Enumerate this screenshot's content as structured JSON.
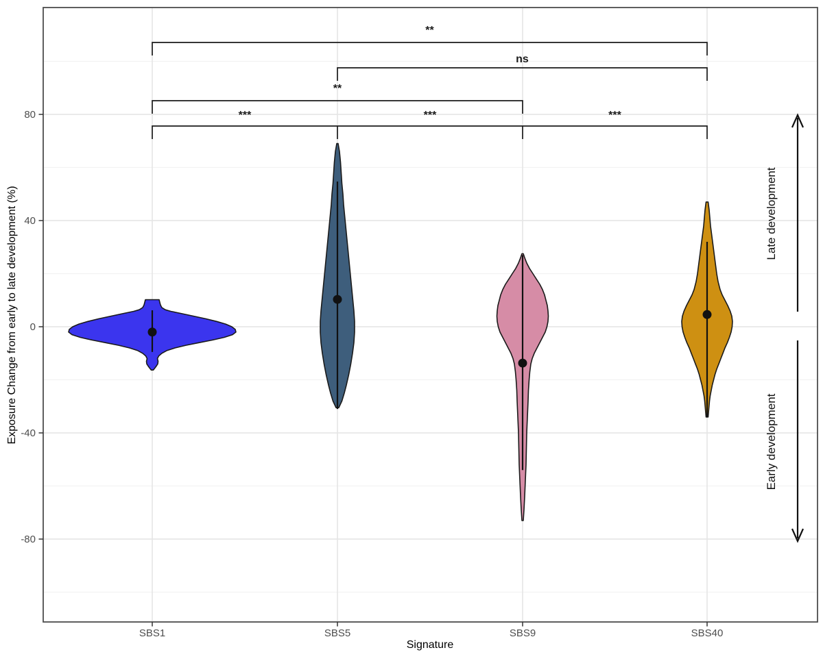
{
  "chart_data": {
    "type": "violin",
    "title": "",
    "xlabel": "Signature",
    "ylabel": "Exposure Change from early to late development (%)",
    "categories": [
      "SBS1",
      "SBS5",
      "SBS9",
      "SBS40"
    ],
    "y_ticks": [
      80,
      40,
      0,
      -40,
      -80
    ],
    "y_tick_labels": [
      "80",
      "40",
      "0",
      "-40",
      "-80"
    ],
    "y_minor_ticks": [
      100,
      60,
      20,
      -20,
      -60,
      -100
    ],
    "ylim": [
      -111,
      120
    ],
    "grid": "on",
    "legend": "none",
    "colors": {
      "SBS1": "#3b35ee",
      "SBS5": "#3e5e7c",
      "SBS9": "#d68ca6",
      "SBS40": "#ce9012",
      "outline": "#1a1a1a",
      "major_grid": "#e4e4e4",
      "minor_grid": "#f2f2f2",
      "panel_border": "#4d4d4d"
    },
    "series": [
      {
        "name": "SBS1",
        "color": "#3b35ee",
        "median": -2,
        "range_line": [
          6.2,
          -9.5
        ],
        "extent": [
          10.2,
          -16.3
        ],
        "profile": [
          [
            10.2,
            10
          ],
          [
            9.2,
            11
          ],
          [
            8.2,
            12
          ],
          [
            7.2,
            14
          ],
          [
            6.4,
            19
          ],
          [
            5.8,
            27
          ],
          [
            5,
            42
          ],
          [
            4,
            60
          ],
          [
            3,
            78
          ],
          [
            2,
            94
          ],
          [
            1,
            107
          ],
          [
            0,
            116
          ],
          [
            -1,
            121
          ],
          [
            -2,
            122
          ],
          [
            -3,
            117
          ],
          [
            -4,
            105
          ],
          [
            -5,
            88
          ],
          [
            -6,
            68
          ],
          [
            -7,
            49
          ],
          [
            -8,
            33
          ],
          [
            -9,
            21
          ],
          [
            -10,
            14
          ],
          [
            -11,
            9.5
          ],
          [
            -12,
            7.5
          ],
          [
            -13,
            8.5
          ],
          [
            -14,
            8
          ],
          [
            -15,
            5.5
          ],
          [
            -16.3,
            1.5
          ]
        ]
      },
      {
        "name": "SBS5",
        "color": "#3e5e7c",
        "median": 10.3,
        "range_line": [
          54.7,
          -31
        ],
        "extent": [
          69,
          -30.5
        ],
        "profile": [
          [
            69,
            1
          ],
          [
            66,
            3
          ],
          [
            62,
            4.5
          ],
          [
            58,
            5.5
          ],
          [
            54,
            6.5
          ],
          [
            50,
            8
          ],
          [
            46,
            9
          ],
          [
            42,
            10.5
          ],
          [
            38,
            12
          ],
          [
            34,
            13.5
          ],
          [
            30,
            15
          ],
          [
            26,
            16.5
          ],
          [
            22,
            18
          ],
          [
            18,
            19.5
          ],
          [
            14,
            21
          ],
          [
            10,
            22.5
          ],
          [
            6,
            24
          ],
          [
            2,
            25
          ],
          [
            -2,
            25
          ],
          [
            -6,
            24
          ],
          [
            -10,
            22
          ],
          [
            -14,
            19.5
          ],
          [
            -18,
            16.5
          ],
          [
            -22,
            13
          ],
          [
            -25,
            10
          ],
          [
            -28,
            6.5
          ],
          [
            -30.5,
            2
          ]
        ]
      },
      {
        "name": "SBS9",
        "color": "#d68ca6",
        "median": -13.7,
        "range_line": [
          27,
          -54
        ],
        "extent": [
          27.5,
          -73
        ],
        "profile": [
          [
            27.5,
            1
          ],
          [
            26,
            3
          ],
          [
            24,
            6
          ],
          [
            22,
            10
          ],
          [
            20,
            15
          ],
          [
            18,
            20
          ],
          [
            16,
            25
          ],
          [
            14,
            29
          ],
          [
            12,
            32
          ],
          [
            10,
            34
          ],
          [
            8,
            36
          ],
          [
            6,
            37
          ],
          [
            4,
            37.5
          ],
          [
            2,
            37
          ],
          [
            0,
            35.5
          ],
          [
            -2,
            33
          ],
          [
            -4,
            29
          ],
          [
            -6,
            25
          ],
          [
            -8,
            21
          ],
          [
            -10,
            17
          ],
          [
            -12,
            14
          ],
          [
            -14,
            12
          ],
          [
            -17,
            10.5
          ],
          [
            -20,
            9.5
          ],
          [
            -24,
            8.5
          ],
          [
            -28,
            8
          ],
          [
            -34,
            7
          ],
          [
            -40,
            6
          ],
          [
            -46,
            5.5
          ],
          [
            -52,
            5
          ],
          [
            -58,
            4
          ],
          [
            -64,
            3
          ],
          [
            -69,
            2
          ],
          [
            -73,
            1
          ]
        ]
      },
      {
        "name": "SBS40",
        "color": "#ce9012",
        "median": 4.6,
        "range_line": [
          32,
          -34
        ],
        "extent": [
          47,
          -34
        ],
        "profile": [
          [
            47,
            1.5
          ],
          [
            44,
            3
          ],
          [
            41,
            4
          ],
          [
            38,
            5
          ],
          [
            35,
            6.5
          ],
          [
            32,
            8
          ],
          [
            29,
            9.5
          ],
          [
            26,
            11
          ],
          [
            23,
            12.5
          ],
          [
            20,
            14
          ],
          [
            17,
            16
          ],
          [
            14,
            19
          ],
          [
            12,
            22
          ],
          [
            10,
            26
          ],
          [
            8,
            30
          ],
          [
            6,
            33.5
          ],
          [
            4,
            36
          ],
          [
            2,
            37
          ],
          [
            0,
            36.5
          ],
          [
            -2,
            35
          ],
          [
            -4,
            32.5
          ],
          [
            -6,
            29.5
          ],
          [
            -8,
            26
          ],
          [
            -10,
            23
          ],
          [
            -12,
            20
          ],
          [
            -14,
            17
          ],
          [
            -16,
            14
          ],
          [
            -18,
            11.5
          ],
          [
            -20,
            9.5
          ],
          [
            -22,
            7.5
          ],
          [
            -24,
            6
          ],
          [
            -26,
            4.5
          ],
          [
            -28,
            3.5
          ],
          [
            -31,
            2.5
          ],
          [
            -34,
            1.5
          ]
        ]
      }
    ],
    "comparisons": [
      {
        "from": "SBS1",
        "to": "SBS40",
        "label": "**"
      },
      {
        "from": "SBS5",
        "to": "SBS40",
        "label": "ns"
      },
      {
        "from": "SBS1",
        "to": "SBS9",
        "label": "**"
      },
      {
        "chain": [
          "SBS1",
          "SBS5",
          "SBS9",
          "SBS40"
        ],
        "labels": [
          "***",
          "***",
          "***"
        ]
      }
    ],
    "annotations": {
      "up_label": "Late development",
      "down_label": "Early development"
    }
  }
}
